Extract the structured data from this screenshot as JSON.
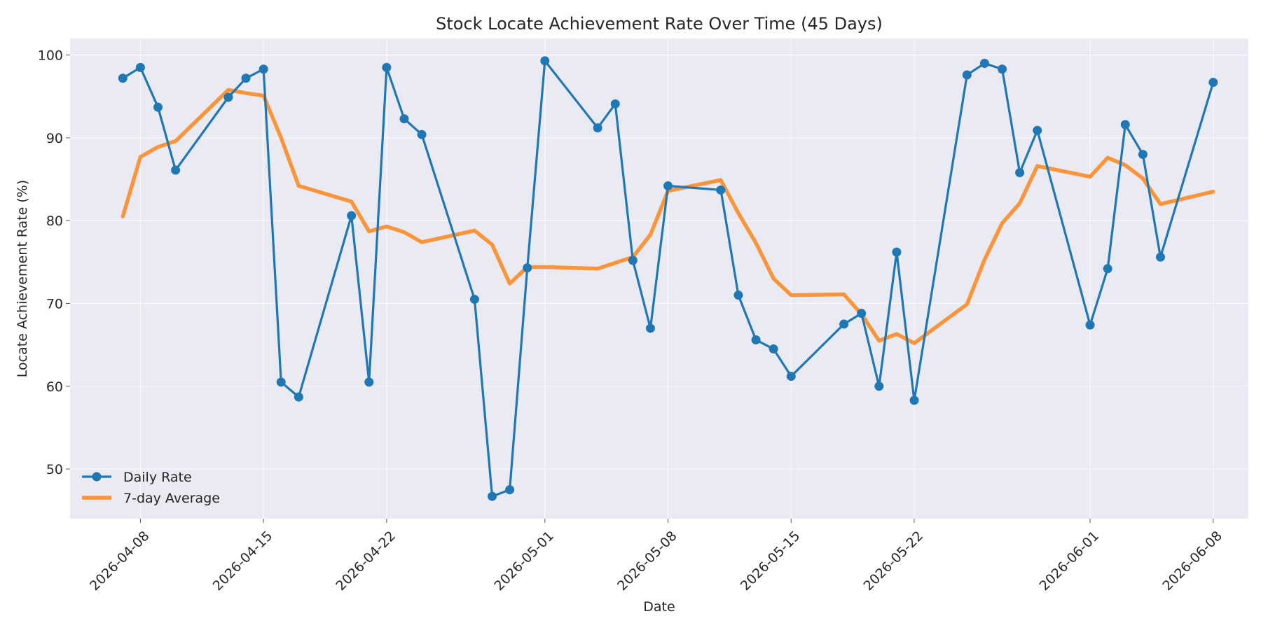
{
  "chart_data": {
    "type": "line",
    "title": "Stock Locate Achievement Rate Over Time (45 Days)",
    "xlabel": "Date",
    "ylabel": "Locate Achievement Rate (%)",
    "xlim": [
      "2026-04-04",
      "2026-06-10"
    ],
    "ylim": [
      44,
      102
    ],
    "x_ticks": [
      "2026-04-08",
      "2026-04-15",
      "2026-04-22",
      "2026-05-01",
      "2026-05-08",
      "2026-05-15",
      "2026-05-22",
      "2026-06-01",
      "2026-06-08"
    ],
    "y_ticks": [
      50,
      60,
      70,
      80,
      90,
      100
    ],
    "grid": true,
    "legend_position": "bottom-left",
    "x": [
      "2026-04-07",
      "2026-04-08",
      "2026-04-09",
      "2026-04-10",
      "2026-04-13",
      "2026-04-14",
      "2026-04-15",
      "2026-04-16",
      "2026-04-17",
      "2026-04-20",
      "2026-04-21",
      "2026-04-22",
      "2026-04-23",
      "2026-04-24",
      "2026-04-27",
      "2026-04-28",
      "2026-04-29",
      "2026-04-30",
      "2026-05-01",
      "2026-05-04",
      "2026-05-05",
      "2026-05-06",
      "2026-05-07",
      "2026-05-08",
      "2026-05-11",
      "2026-05-12",
      "2026-05-13",
      "2026-05-14",
      "2026-05-15",
      "2026-05-18",
      "2026-05-19",
      "2026-05-20",
      "2026-05-21",
      "2026-05-22",
      "2026-05-25",
      "2026-05-26",
      "2026-05-27",
      "2026-05-28",
      "2026-05-29",
      "2026-06-01",
      "2026-06-02",
      "2026-06-03",
      "2026-06-04",
      "2026-06-05",
      "2026-06-08"
    ],
    "series": [
      {
        "name": "Daily Rate",
        "color": "#1f77b4",
        "markers": true,
        "values": [
          97.2,
          98.5,
          93.7,
          86.1,
          94.9,
          97.2,
          98.3,
          60.5,
          58.7,
          80.6,
          60.5,
          98.5,
          92.3,
          90.4,
          70.5,
          46.7,
          47.5,
          74.3,
          99.3,
          91.2,
          94.1,
          75.2,
          67.0,
          84.2,
          83.7,
          71.0,
          65.6,
          64.5,
          61.2,
          67.5,
          68.8,
          60.0,
          76.2,
          58.3,
          97.6,
          99.0,
          98.3,
          85.8,
          90.9,
          67.4,
          74.2,
          91.6,
          88.0,
          75.6,
          96.7
        ]
      },
      {
        "name": "7-day Average",
        "color": "#ff7f0e",
        "markers": false,
        "values": [
          80.5,
          87.7,
          88.9,
          89.6,
          95.8,
          95.4,
          95.1,
          90.0,
          84.2,
          82.3,
          78.7,
          79.3,
          78.6,
          77.4,
          78.8,
          77.1,
          72.4,
          74.4,
          74.4,
          74.2,
          74.9,
          75.6,
          78.3,
          83.6,
          84.9,
          80.9,
          77.3,
          73.0,
          71.0,
          71.1,
          68.7,
          65.5,
          66.3,
          65.2,
          69.9,
          75.3,
          79.7,
          82.1,
          86.6,
          85.3,
          87.6,
          86.7,
          85.1,
          82.0,
          83.5
        ]
      }
    ]
  }
}
